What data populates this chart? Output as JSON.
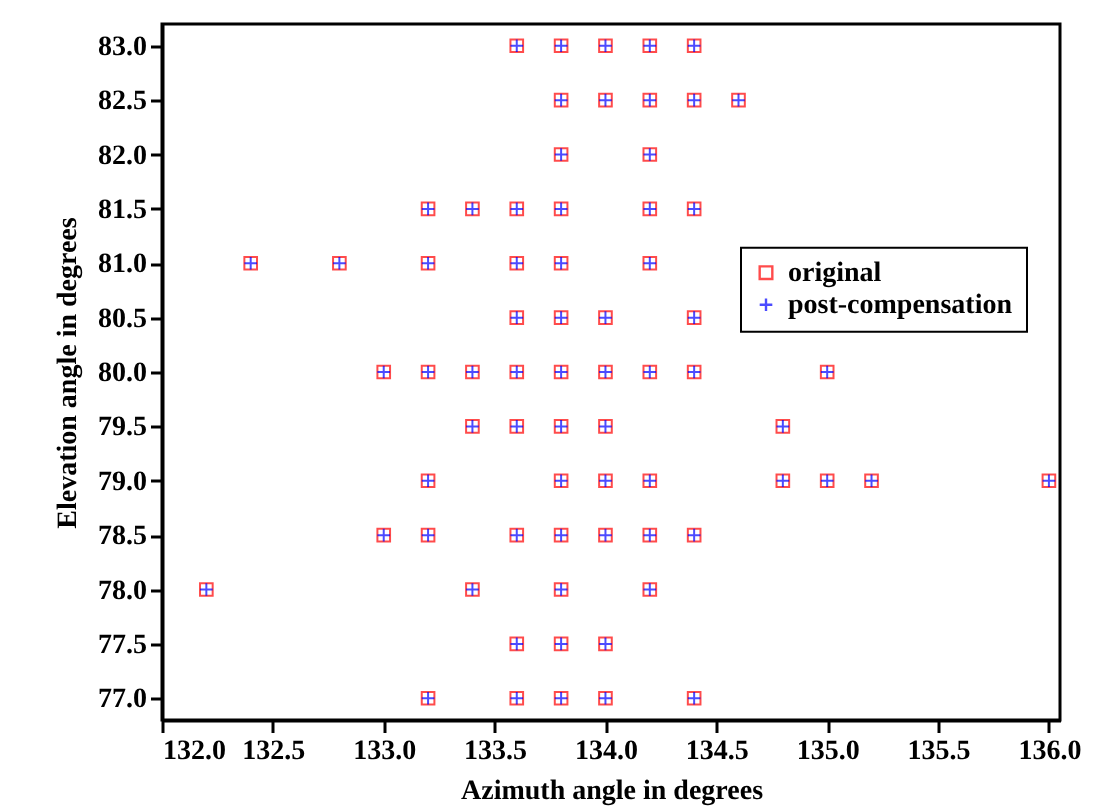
{
  "chart_data": {
    "type": "scatter",
    "xlabel": "Azimuth angle in degrees",
    "ylabel": "Elevation angle in degrees",
    "x": [
      133.6,
      133.8,
      134.0,
      134.2,
      134.4,
      133.8,
      134.0,
      134.2,
      134.4,
      134.6,
      133.8,
      134.2,
      133.2,
      133.4,
      133.6,
      133.8,
      134.2,
      134.4,
      132.4,
      132.8,
      133.2,
      133.6,
      133.8,
      134.2,
      133.6,
      133.8,
      134.0,
      134.4,
      133.0,
      133.2,
      133.4,
      133.6,
      133.8,
      134.0,
      134.2,
      134.4,
      135.0,
      133.4,
      133.6,
      133.8,
      134.0,
      134.8,
      133.2,
      133.8,
      134.0,
      134.2,
      134.8,
      135.0,
      135.2,
      136.0,
      133.0,
      133.2,
      133.6,
      133.8,
      134.0,
      134.2,
      134.4,
      132.2,
      133.4,
      133.8,
      134.2,
      133.6,
      133.8,
      134.0,
      133.2,
      133.6,
      133.8,
      134.0,
      134.4
    ],
    "series": [
      {
        "name": "original",
        "color": "#ff0000",
        "marker": "square",
        "values": [
          83.0,
          83.0,
          83.0,
          83.0,
          83.0,
          82.5,
          82.5,
          82.5,
          82.5,
          82.5,
          82.0,
          82.0,
          81.5,
          81.5,
          81.5,
          81.5,
          81.5,
          81.5,
          81.0,
          81.0,
          81.0,
          81.0,
          81.0,
          81.0,
          80.5,
          80.5,
          80.5,
          80.5,
          80.0,
          80.0,
          80.0,
          80.0,
          80.0,
          80.0,
          80.0,
          80.0,
          80.0,
          79.5,
          79.5,
          79.5,
          79.5,
          79.5,
          79.0,
          79.0,
          79.0,
          79.0,
          79.0,
          79.0,
          79.0,
          79.0,
          78.5,
          78.5,
          78.5,
          78.5,
          78.5,
          78.5,
          78.5,
          78.0,
          78.0,
          78.0,
          78.0,
          77.5,
          77.5,
          77.5,
          77.0,
          77.0,
          77.0,
          77.0,
          77.0
        ]
      },
      {
        "name": "post-compensation",
        "color": "#0000ff",
        "marker": "cross",
        "values": [
          83.0,
          83.0,
          83.0,
          83.0,
          83.0,
          82.5,
          82.5,
          82.5,
          82.5,
          82.5,
          82.0,
          82.0,
          81.5,
          81.5,
          81.5,
          81.5,
          81.5,
          81.5,
          81.0,
          81.0,
          81.0,
          81.0,
          81.0,
          81.0,
          80.5,
          80.5,
          80.5,
          80.5,
          80.0,
          80.0,
          80.0,
          80.0,
          80.0,
          80.0,
          80.0,
          80.0,
          80.0,
          79.5,
          79.5,
          79.5,
          79.5,
          79.5,
          79.0,
          79.0,
          79.0,
          79.0,
          79.0,
          79.0,
          79.0,
          79.0,
          78.5,
          78.5,
          78.5,
          78.5,
          78.5,
          78.5,
          78.5,
          78.0,
          78.0,
          78.0,
          78.0,
          77.5,
          77.5,
          77.5,
          77.0,
          77.0,
          77.0,
          77.0,
          77.0
        ]
      }
    ],
    "xlim": [
      132.0,
      136.05
    ],
    "xticks": [
      {
        "value": 132,
        "label": "132.0"
      },
      132.5,
      {
        "value": 133,
        "label": "133.0"
      },
      133.5,
      {
        "value": 134,
        "label": "134.0"
      },
      134.5,
      {
        "value": 135,
        "label": "135.0"
      },
      135.5,
      {
        "value": 136,
        "label": "136.0"
      }
    ],
    "ylim": [
      76.8,
      83.2
    ],
    "yticks": [
      {
        "value": 77,
        "label": "77.0"
      },
      77.5,
      {
        "value": 78,
        "label": "78.0"
      },
      78.5,
      {
        "value": 79,
        "label": "79.0"
      },
      79.5,
      {
        "value": 80,
        "label": "80.0"
      },
      80.5,
      {
        "value": 81,
        "label": "81.0"
      },
      81.5,
      {
        "value": 82,
        "label": "82.0"
      },
      82.5,
      {
        "value": 83,
        "label": "83.0"
      }
    ],
    "grid": false,
    "legend": "right"
  }
}
